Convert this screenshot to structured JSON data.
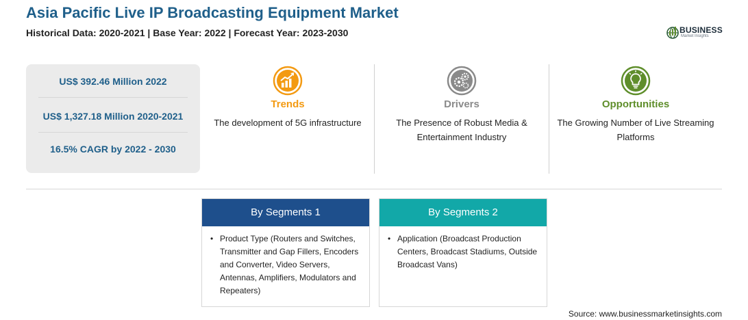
{
  "header": {
    "title": "Asia Pacific Live IP Broadcasting Equipment Market",
    "subtitle": "Historical Data: 2020-2021 | Base Year: 2022 | Forecast Year: 2023-2030"
  },
  "logo": {
    "name": "BUSINESS",
    "tagline": "Market Insights",
    "icon": "globe-logo-icon"
  },
  "stats": [
    "US$ 392.46 Million 2022",
    "US$ 1,327.18 Million 2020-2021",
    "16.5% CAGR by 2022 - 2030"
  ],
  "pillars": [
    {
      "title": "Trends",
      "description": "The development of 5G infrastructure",
      "icon": "growth-chart-icon",
      "color": "#f39a12"
    },
    {
      "title": "Drivers",
      "description": "The Presence of Robust Media & Entertainment Industry",
      "icon": "gears-icon",
      "color": "#8a8a8a"
    },
    {
      "title": "Opportunities",
      "description": "The Growing Number of Live Streaming Platforms",
      "icon": "lightbulb-icon",
      "color": "#5f8e2b"
    }
  ],
  "segments": [
    {
      "title": "By Segments 1",
      "color": "#1e4f8c",
      "items": [
        "Product Type (Routers and Switches, Transmitter and Gap Fillers, Encoders and Converter, Video Servers, Antennas, Amplifiers, Modulators and Repeaters)"
      ]
    },
    {
      "title": "By Segments 2",
      "color": "#12a8a8",
      "items": [
        "Application (Broadcast Production Centers, Broadcast Stadiums, Outside Broadcast Vans)"
      ]
    }
  ],
  "source": "Source: www.businessmarketinsights.com"
}
